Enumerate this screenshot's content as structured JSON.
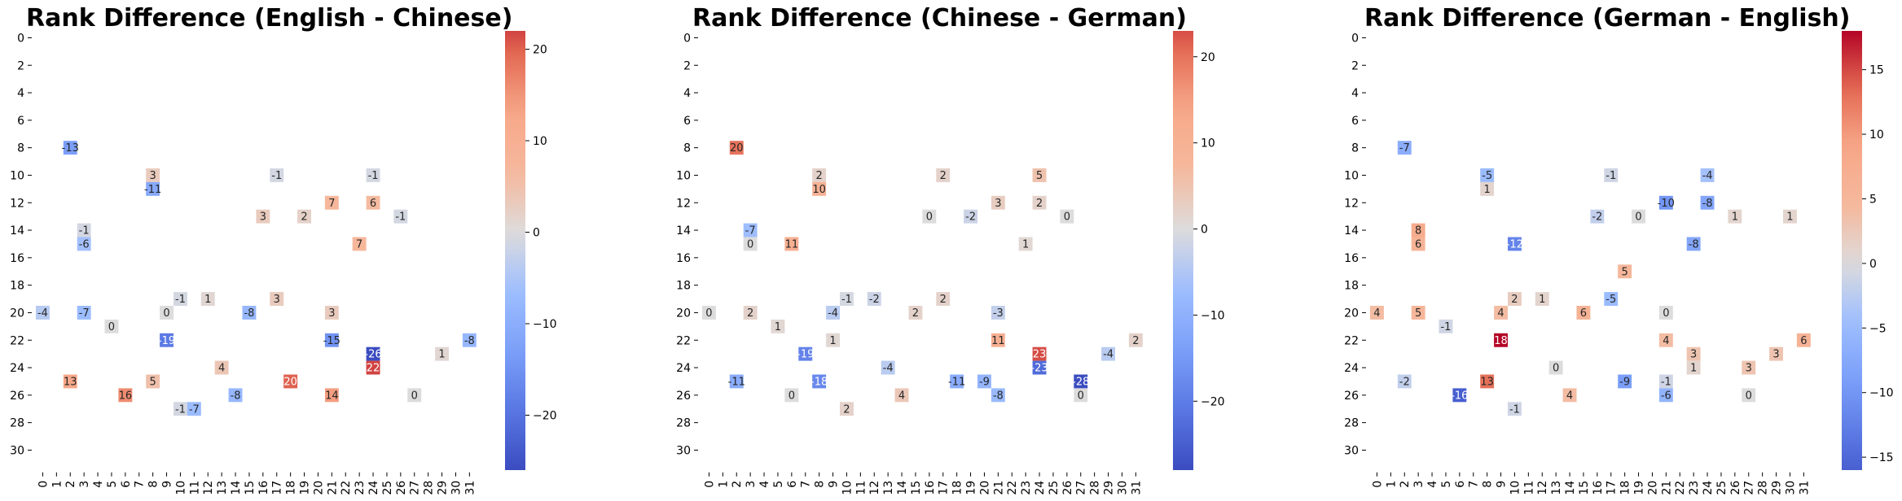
{
  "chart_data": [
    {
      "type": "heatmap",
      "title": "Rank Difference (English - Chinese)",
      "xlabel": "",
      "ylabel": "",
      "rows": 32,
      "cols": 32,
      "x_ticks": [
        "0",
        "1",
        "2",
        "3",
        "4",
        "5",
        "6",
        "7",
        "8",
        "9",
        "10",
        "11",
        "12",
        "13",
        "14",
        "15",
        "16",
        "17",
        "18",
        "19",
        "20",
        "21",
        "22",
        "23",
        "24",
        "25",
        "26",
        "27",
        "28",
        "29",
        "30",
        "31"
      ],
      "y_ticks": [
        "0",
        "2",
        "4",
        "6",
        "8",
        "10",
        "12",
        "14",
        "16",
        "18",
        "20",
        "22",
        "24",
        "26",
        "28",
        "30"
      ],
      "colorbar": {
        "min": -26,
        "max": 22,
        "ticks": [
          20,
          10,
          0,
          -10,
          -20
        ],
        "tick_labels": [
          "20",
          "10",
          "0",
          "−10",
          "−20"
        ],
        "colormap": "coolwarm"
      },
      "cells": [
        {
          "row": 8,
          "col": 2,
          "value": -13
        },
        {
          "row": 10,
          "col": 8,
          "value": 3
        },
        {
          "row": 10,
          "col": 17,
          "value": -1
        },
        {
          "row": 10,
          "col": 24,
          "value": -1
        },
        {
          "row": 11,
          "col": 8,
          "value": -11
        },
        {
          "row": 12,
          "col": 21,
          "value": 7
        },
        {
          "row": 12,
          "col": 24,
          "value": 6
        },
        {
          "row": 13,
          "col": 16,
          "value": 3
        },
        {
          "row": 13,
          "col": 19,
          "value": 2
        },
        {
          "row": 13,
          "col": 26,
          "value": -1
        },
        {
          "row": 14,
          "col": 3,
          "value": -1
        },
        {
          "row": 15,
          "col": 3,
          "value": -6
        },
        {
          "row": 15,
          "col": 23,
          "value": 7
        },
        {
          "row": 19,
          "col": 10,
          "value": -1
        },
        {
          "row": 19,
          "col": 12,
          "value": 1
        },
        {
          "row": 19,
          "col": 17,
          "value": 3
        },
        {
          "row": 20,
          "col": 0,
          "value": -4
        },
        {
          "row": 20,
          "col": 3,
          "value": -7
        },
        {
          "row": 20,
          "col": 9,
          "value": 0
        },
        {
          "row": 20,
          "col": 15,
          "value": -8
        },
        {
          "row": 20,
          "col": 21,
          "value": 3
        },
        {
          "row": 21,
          "col": 5,
          "value": 0
        },
        {
          "row": 22,
          "col": 9,
          "value": -19
        },
        {
          "row": 22,
          "col": 21,
          "value": -15
        },
        {
          "row": 22,
          "col": 31,
          "value": -8
        },
        {
          "row": 23,
          "col": 24,
          "value": -26
        },
        {
          "row": 23,
          "col": 29,
          "value": 1
        },
        {
          "row": 24,
          "col": 13,
          "value": 4
        },
        {
          "row": 24,
          "col": 24,
          "value": 22
        },
        {
          "row": 25,
          "col": 2,
          "value": 13
        },
        {
          "row": 25,
          "col": 8,
          "value": 5
        },
        {
          "row": 25,
          "col": 18,
          "value": 20
        },
        {
          "row": 26,
          "col": 6,
          "value": 16
        },
        {
          "row": 26,
          "col": 14,
          "value": -8
        },
        {
          "row": 26,
          "col": 21,
          "value": 14
        },
        {
          "row": 26,
          "col": 27,
          "value": 0
        },
        {
          "row": 27,
          "col": 10,
          "value": -1
        },
        {
          "row": 27,
          "col": 11,
          "value": -7
        }
      ]
    },
    {
      "type": "heatmap",
      "title": "Rank Difference (Chinese - German)",
      "xlabel": "",
      "ylabel": "",
      "rows": 32,
      "cols": 32,
      "x_ticks": [
        "0",
        "1",
        "2",
        "3",
        "4",
        "5",
        "6",
        "7",
        "8",
        "9",
        "10",
        "11",
        "12",
        "13",
        "14",
        "15",
        "16",
        "17",
        "18",
        "19",
        "20",
        "21",
        "22",
        "23",
        "24",
        "25",
        "26",
        "27",
        "28",
        "29",
        "30",
        "31"
      ],
      "y_ticks": [
        "0",
        "2",
        "4",
        "6",
        "8",
        "10",
        "12",
        "14",
        "16",
        "18",
        "20",
        "22",
        "24",
        "26",
        "28",
        "30"
      ],
      "colorbar": {
        "min": -28,
        "max": 23,
        "ticks": [
          20,
          10,
          0,
          -10,
          -20
        ],
        "tick_labels": [
          "20",
          "10",
          "0",
          "−10",
          "−20"
        ],
        "colormap": "coolwarm"
      },
      "cells": [
        {
          "row": 8,
          "col": 2,
          "value": 20
        },
        {
          "row": 10,
          "col": 8,
          "value": 2
        },
        {
          "row": 10,
          "col": 17,
          "value": 2
        },
        {
          "row": 10,
          "col": 24,
          "value": 5
        },
        {
          "row": 11,
          "col": 8,
          "value": 10
        },
        {
          "row": 12,
          "col": 21,
          "value": 3
        },
        {
          "row": 12,
          "col": 24,
          "value": 2
        },
        {
          "row": 13,
          "col": 16,
          "value": 0
        },
        {
          "row": 13,
          "col": 19,
          "value": -2
        },
        {
          "row": 13,
          "col": 26,
          "value": 0
        },
        {
          "row": 14,
          "col": 3,
          "value": -7
        },
        {
          "row": 15,
          "col": 3,
          "value": 0
        },
        {
          "row": 15,
          "col": 6,
          "value": 11
        },
        {
          "row": 15,
          "col": 23,
          "value": 1
        },
        {
          "row": 19,
          "col": 10,
          "value": -1
        },
        {
          "row": 19,
          "col": 12,
          "value": -2
        },
        {
          "row": 19,
          "col": 17,
          "value": 2
        },
        {
          "row": 20,
          "col": 0,
          "value": 0
        },
        {
          "row": 20,
          "col": 3,
          "value": 2
        },
        {
          "row": 20,
          "col": 9,
          "value": -4
        },
        {
          "row": 20,
          "col": 15,
          "value": 2
        },
        {
          "row": 20,
          "col": 21,
          "value": -3
        },
        {
          "row": 21,
          "col": 5,
          "value": 1
        },
        {
          "row": 22,
          "col": 9,
          "value": 1
        },
        {
          "row": 22,
          "col": 21,
          "value": 11
        },
        {
          "row": 22,
          "col": 31,
          "value": 2
        },
        {
          "row": 23,
          "col": 7,
          "value": -19
        },
        {
          "row": 23,
          "col": 24,
          "value": 23
        },
        {
          "row": 23,
          "col": 29,
          "value": -4
        },
        {
          "row": 24,
          "col": 13,
          "value": -4
        },
        {
          "row": 24,
          "col": 24,
          "value": -23
        },
        {
          "row": 25,
          "col": 2,
          "value": -11
        },
        {
          "row": 25,
          "col": 8,
          "value": -18
        },
        {
          "row": 25,
          "col": 18,
          "value": -11
        },
        {
          "row": 25,
          "col": 20,
          "value": -9
        },
        {
          "row": 25,
          "col": 27,
          "value": -28
        },
        {
          "row": 26,
          "col": 6,
          "value": 0
        },
        {
          "row": 26,
          "col": 14,
          "value": 4
        },
        {
          "row": 26,
          "col": 21,
          "value": -8
        },
        {
          "row": 26,
          "col": 27,
          "value": 0
        },
        {
          "row": 27,
          "col": 10,
          "value": 2
        }
      ]
    },
    {
      "type": "heatmap",
      "title": "Rank Difference (German - English)",
      "xlabel": "",
      "ylabel": "",
      "rows": 32,
      "cols": 32,
      "x_ticks": [
        "0",
        "1",
        "2",
        "3",
        "4",
        "5",
        "6",
        "7",
        "8",
        "9",
        "10",
        "11",
        "12",
        "13",
        "14",
        "15",
        "16",
        "17",
        "18",
        "19",
        "20",
        "21",
        "22",
        "23",
        "24",
        "25",
        "26",
        "27",
        "28",
        "29",
        "30",
        "31"
      ],
      "y_ticks": [
        "0",
        "2",
        "4",
        "6",
        "8",
        "10",
        "12",
        "14",
        "16",
        "18",
        "20",
        "22",
        "24",
        "26",
        "28",
        "30"
      ],
      "colorbar": {
        "min": -16,
        "max": 18,
        "ticks": [
          15,
          10,
          5,
          0,
          -5,
          -10,
          -15
        ],
        "tick_labels": [
          "15",
          "10",
          "5",
          "0",
          "−5",
          "−10",
          "−15"
        ],
        "colormap": "coolwarm"
      },
      "cells": [
        {
          "row": 8,
          "col": 2,
          "value": -7
        },
        {
          "row": 10,
          "col": 8,
          "value": -5
        },
        {
          "row": 10,
          "col": 17,
          "value": -1
        },
        {
          "row": 10,
          "col": 24,
          "value": -4
        },
        {
          "row": 11,
          "col": 8,
          "value": 1
        },
        {
          "row": 12,
          "col": 21,
          "value": -10
        },
        {
          "row": 12,
          "col": 24,
          "value": -8
        },
        {
          "row": 13,
          "col": 16,
          "value": -2
        },
        {
          "row": 13,
          "col": 19,
          "value": 0
        },
        {
          "row": 13,
          "col": 26,
          "value": 1
        },
        {
          "row": 13,
          "col": 30,
          "value": 1
        },
        {
          "row": 14,
          "col": 3,
          "value": 8
        },
        {
          "row": 15,
          "col": 3,
          "value": 6
        },
        {
          "row": 15,
          "col": 10,
          "value": -12
        },
        {
          "row": 15,
          "col": 23,
          "value": -8
        },
        {
          "row": 17,
          "col": 18,
          "value": 5
        },
        {
          "row": 19,
          "col": 10,
          "value": 2
        },
        {
          "row": 19,
          "col": 12,
          "value": 1
        },
        {
          "row": 19,
          "col": 17,
          "value": -5
        },
        {
          "row": 20,
          "col": 0,
          "value": 4
        },
        {
          "row": 20,
          "col": 3,
          "value": 5
        },
        {
          "row": 20,
          "col": 9,
          "value": 4
        },
        {
          "row": 20,
          "col": 15,
          "value": 6
        },
        {
          "row": 20,
          "col": 21,
          "value": 0
        },
        {
          "row": 21,
          "col": 5,
          "value": -1
        },
        {
          "row": 22,
          "col": 9,
          "value": 18
        },
        {
          "row": 22,
          "col": 21,
          "value": 4
        },
        {
          "row": 22,
          "col": 31,
          "value": 6
        },
        {
          "row": 23,
          "col": 23,
          "value": 3
        },
        {
          "row": 23,
          "col": 29,
          "value": 3
        },
        {
          "row": 24,
          "col": 13,
          "value": 0
        },
        {
          "row": 24,
          "col": 23,
          "value": 1
        },
        {
          "row": 24,
          "col": 27,
          "value": 3
        },
        {
          "row": 25,
          "col": 2,
          "value": -2
        },
        {
          "row": 25,
          "col": 8,
          "value": 13
        },
        {
          "row": 25,
          "col": 18,
          "value": -9
        },
        {
          "row": 25,
          "col": 21,
          "value": -1
        },
        {
          "row": 26,
          "col": 6,
          "value": -16
        },
        {
          "row": 26,
          "col": 14,
          "value": 4
        },
        {
          "row": 26,
          "col": 21,
          "value": -6
        },
        {
          "row": 26,
          "col": 27,
          "value": 0
        },
        {
          "row": 27,
          "col": 10,
          "value": -1
        }
      ]
    }
  ]
}
